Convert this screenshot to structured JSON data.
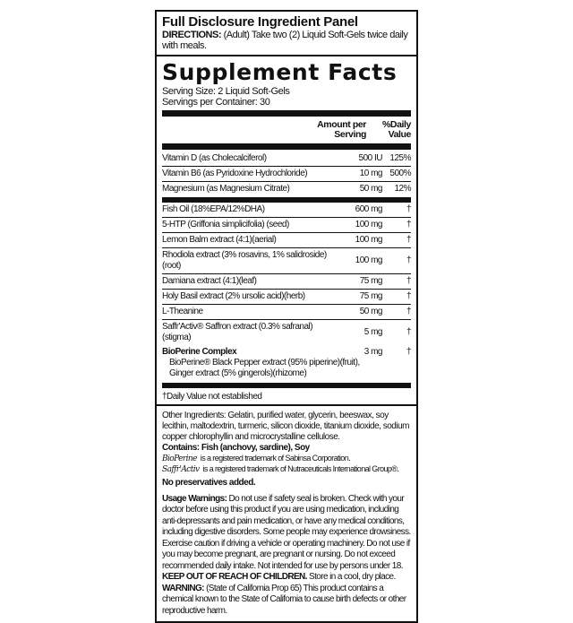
{
  "panel_title": "Full Disclosure Ingredient Panel",
  "directions": {
    "label": "DIRECTIONS:",
    "text": "(Adult) Take two (2) Liquid Soft-Gels twice daily with meals."
  },
  "facts": {
    "title": "Supplement Facts",
    "serving_size": "Serving Size:  2 Liquid Soft-Gels",
    "servings_per_container": "Servings per Container:  30",
    "col_amount": "Amount per Serving",
    "col_dv": "%Daily Value",
    "vitamins": [
      {
        "name": "Vitamin D (as Cholecalciferol)",
        "amount": "500 IU",
        "dv": "125%"
      },
      {
        "name": "Vitamin B6 (as Pyridoxine Hydrochloride)",
        "amount": "10 mg",
        "dv": "500%"
      },
      {
        "name": "Magnesium (as Magnesium Citrate)",
        "amount": "50 mg",
        "dv": "12%"
      }
    ],
    "others": [
      {
        "name": "Fish Oil (18%EPA/12%DHA)",
        "amount": "600 mg",
        "dv": "†"
      },
      {
        "name": "5-HTP (Griffonia simplicifolia) (seed)",
        "amount": "100 mg",
        "dv": "†"
      },
      {
        "name": "Lemon Balm extract (4:1)(aerial)",
        "amount": "100 mg",
        "dv": "†"
      },
      {
        "name": "Rhodiola extract (3% rosavins, 1% salidroside)(root)",
        "amount": "100 mg",
        "dv": "†"
      },
      {
        "name": "Damiana extract (4:1)(leaf)",
        "amount": "75 mg",
        "dv": "†"
      },
      {
        "name": "Holy Basil extract (2% ursolic acid)(herb)",
        "amount": "75 mg",
        "dv": "†"
      },
      {
        "name": "L-Theanine",
        "amount": "50 mg",
        "dv": "†"
      },
      {
        "name": "Saffr'Activ® Saffron extract (0.3% safranal)(stigma)",
        "amount": "5 mg",
        "dv": "†"
      }
    ],
    "complex": {
      "name": "BioPerine Complex",
      "amount": "3 mg",
      "dv": "†",
      "sub1": "BioPerine® Black Pepper extract (95% piperine)(fruit),",
      "sub2": "Ginger extract (5% gingerols)(rhizome)"
    },
    "footnote": "†Daily Value not established"
  },
  "other_ingredients": "Other Ingredients: Gelatin, purified water, glycerin, beeswax, soy lecithin, maltodextrin, turmeric, silicon dioxide, titanium dioxide, sodium copper chlorophyllin and microcrystalline cellulose.",
  "contains": "Contains: Fish (anchovy, sardine), Soy",
  "trademarks": [
    {
      "logo": "BioPerine",
      "text": "is a registered trademark of Sabinsa Corporation."
    },
    {
      "logo": "Saffr'Activ",
      "text": "is a registered trademark of Nutraceuticals International Group®."
    }
  ],
  "no_preservatives": "No preservatives added.",
  "warnings": {
    "label": "Usage Warnings:",
    "text": "Do not use if safety seal is broken. Check with your doctor before using this product if you are using medication, including anti-depressants and pain medication, or have any medical conditions, including digestive disorders. Some people may experience drowsiness. Exercise caution if driving a vehicle or operating machinery. Do not use if you may become pregnant, are pregnant or nursing. Do not exceed recommended daily intake. Not intended for use by persons under 18.",
    "keep_out": "KEEP OUT OF REACH OF CHILDREN.",
    "store": "Store in a cool, dry place.",
    "prop65_label": "WARNING:",
    "prop65_text": "(State of California Prop 65) This product contains a chemical known to the State of California to cause birth defects or other reproductive harm."
  }
}
